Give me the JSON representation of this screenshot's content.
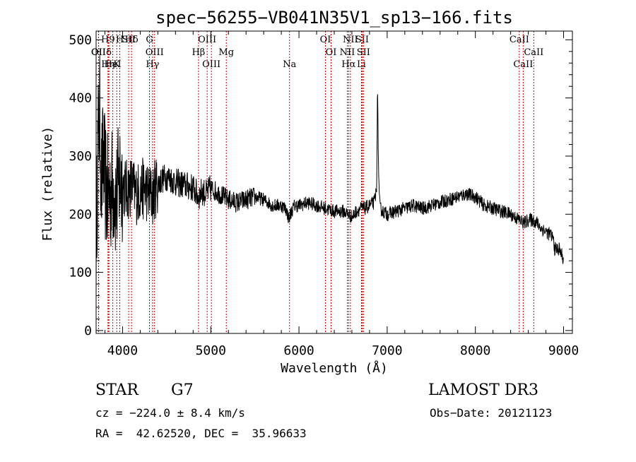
{
  "chart_data": {
    "type": "line",
    "title": "spec−56255−VB041N35V1_sp13−166.fits",
    "xlabel": "Wavelength (Å)",
    "ylabel": "Flux (relative)",
    "xlim": [
      3700,
      9100
    ],
    "ylim": [
      -5,
      515
    ],
    "xticks": [
      4000,
      5000,
      6000,
      7000,
      8000,
      9000
    ],
    "yticks": [
      0,
      100,
      200,
      300,
      400,
      500
    ],
    "grid": false,
    "spectrum_keypoints": {
      "x": [
        3700,
        3720,
        3740,
        3760,
        3780,
        3800,
        3830,
        3860,
        3900,
        3930,
        3970,
        4000,
        4050,
        4100,
        4150,
        4200,
        4250,
        4300,
        4340,
        4380,
        4450,
        4500,
        4600,
        4700,
        4800,
        4861,
        4900,
        4950,
        5000,
        5100,
        5200,
        5300,
        5400,
        5500,
        5600,
        5700,
        5800,
        5850,
        5890,
        5900,
        5950,
        6000,
        6100,
        6200,
        6300,
        6400,
        6500,
        6563,
        6600,
        6650,
        6700,
        6750,
        6800,
        6850,
        6880,
        6890,
        6900,
        6910,
        6920,
        6950,
        7000,
        7100,
        7200,
        7300,
        7400,
        7500,
        7600,
        7700,
        7800,
        7900,
        8000,
        8100,
        8200,
        8300,
        8400,
        8500,
        8550,
        8600,
        8650,
        8700,
        8750,
        8800,
        8850,
        8880,
        8900,
        8950,
        8980,
        9000
      ],
      "y": [
        150,
        320,
        380,
        250,
        300,
        260,
        230,
        240,
        250,
        220,
        270,
        250,
        240,
        250,
        235,
        240,
        245,
        235,
        230,
        250,
        260,
        265,
        255,
        250,
        245,
        230,
        240,
        235,
        245,
        235,
        225,
        220,
        225,
        230,
        225,
        215,
        215,
        210,
        190,
        200,
        215,
        215,
        220,
        215,
        210,
        205,
        205,
        200,
        195,
        205,
        210,
        210,
        215,
        220,
        240,
        420,
        300,
        230,
        210,
        205,
        200,
        205,
        210,
        215,
        210,
        215,
        220,
        225,
        230,
        235,
        230,
        215,
        210,
        205,
        200,
        190,
        185,
        190,
        190,
        185,
        175,
        170,
        165,
        160,
        140,
        140,
        130,
        120
      ]
    },
    "line_markers": [
      {
        "label": "H9",
        "wavelength": 3835
      },
      {
        "label": "δ",
        "wavelength": 3845
      },
      {
        "label": "K",
        "wavelength": 3934
      },
      {
        "label": "Hδ",
        "wavelength": 4102
      },
      {
        "label": "OII",
        "wavelength": 3727
      },
      {
        "label": "HeI",
        "wavelength": 3889
      },
      {
        "label": "SII",
        "wavelength": 4069
      },
      {
        "label": "OII",
        "wavelength": 3729
      },
      {
        "label": "Hη",
        "wavelength": 3835
      },
      {
        "label": "H",
        "wavelength": 3969
      },
      {
        "label": "OIII",
        "wavelength": 4363
      },
      {
        "label": "Hγ",
        "wavelength": 4340
      },
      {
        "label": "G",
        "wavelength": 4305
      },
      {
        "label": "Hβ",
        "wavelength": 4861
      },
      {
        "label": "OIII",
        "wavelength": 5007
      },
      {
        "label": "OIII",
        "wavelength": 4959
      },
      {
        "label": "Mg",
        "wavelength": 5176
      },
      {
        "label": "Na",
        "wavelength": 5893
      },
      {
        "label": "OI",
        "wavelength": 6300
      },
      {
        "label": "OI",
        "wavelength": 6364
      },
      {
        "label": "Hα",
        "wavelength": 6563
      },
      {
        "label": "SII",
        "wavelength": 6716
      },
      {
        "label": "NII",
        "wavelength": 6548
      },
      {
        "label": "Li",
        "wavelength": 6708
      },
      {
        "label": "NII",
        "wavelength": 6583
      },
      {
        "label": "SII",
        "wavelength": 6731
      },
      {
        "label": "CaII",
        "wavelength": 8542
      },
      {
        "label": "CaII",
        "wavelength": 8498
      },
      {
        "label": "CaII",
        "wavelength": 8662
      }
    ]
  },
  "info": {
    "object_class": "STAR",
    "subclass": "G7",
    "survey": "LAMOST DR3",
    "redshift": "cz = −224.0 ± 8.4 km/s",
    "obs_date": "Obs−Date: 20121123",
    "coords": "RA =  42.62520, DEC =  35.96633"
  },
  "colors": {
    "spectrum": "#000000",
    "line_marker": "#cc0000",
    "axes": "#000000"
  }
}
